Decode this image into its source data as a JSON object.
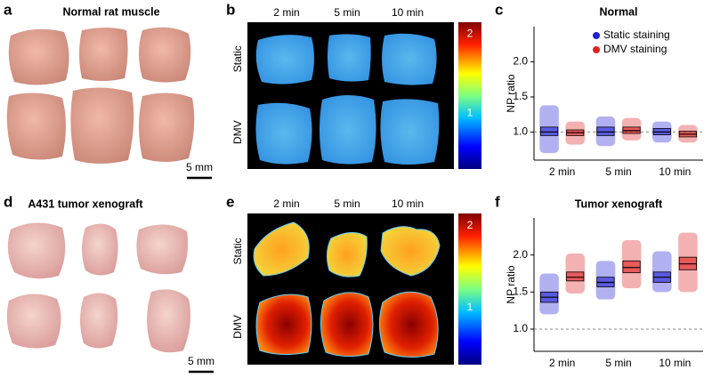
{
  "panels": {
    "a": {
      "letter": "a",
      "title": "Normal rat muscle",
      "scale": "5 mm"
    },
    "b": {
      "letter": "b",
      "columns": [
        "2 min",
        "5 min",
        "10 min"
      ],
      "rows": [
        "Static",
        "DMV"
      ],
      "colorbar_ticks": [
        2,
        1
      ],
      "colorbar_lim": [
        0.3,
        2.15
      ]
    },
    "d": {
      "letter": "d",
      "title": "A431 tumor xenograft",
      "scale": "5 mm"
    },
    "e": {
      "letter": "e",
      "columns": [
        "2 min",
        "5 min",
        "10 min"
      ],
      "rows": [
        "Static",
        "DMV"
      ],
      "colorbar_ticks": [
        2,
        1
      ],
      "colorbar_lim": [
        0.3,
        2.15
      ]
    }
  },
  "chart_data": [
    {
      "type": "box",
      "letter": "c",
      "title": "Normal",
      "ylabel": "NP ratio",
      "categories": [
        "2 min",
        "5 min",
        "10 min"
      ],
      "ylim": [
        0.6,
        2.5
      ],
      "yticks": [
        {
          "value": 1,
          "label": "1.0"
        },
        {
          "value": 1.5,
          "label": "1.5"
        },
        {
          "value": 2,
          "label": "2.0"
        }
      ],
      "reference_line": 1,
      "legend": "upper right",
      "series": [
        {
          "name": "Static staining",
          "color": "#1f1fd6",
          "median": [
            1.0,
            1.0,
            1.0
          ],
          "q1": [
            0.95,
            0.95,
            0.96
          ],
          "q3": [
            1.07,
            1.07,
            1.05
          ],
          "min": [
            0.7,
            0.8,
            0.85
          ],
          "max": [
            1.38,
            1.22,
            1.15
          ]
        },
        {
          "name": "DMV staining",
          "color": "#e02020",
          "median": [
            0.99,
            1.02,
            0.97
          ],
          "q1": [
            0.95,
            0.98,
            0.93
          ],
          "q3": [
            1.03,
            1.07,
            1.01
          ],
          "min": [
            0.82,
            0.88,
            0.85
          ],
          "max": [
            1.15,
            1.2,
            1.1
          ]
        }
      ]
    },
    {
      "type": "box",
      "letter": "f",
      "title": "Tumor xenograft",
      "ylabel": "NP ratio",
      "categories": [
        "2 min",
        "5 min",
        "10 min"
      ],
      "ylim": [
        0.7,
        2.5
      ],
      "yticks": [
        {
          "value": 1,
          "label": "1.0"
        },
        {
          "value": 1.5,
          "label": "1.5"
        },
        {
          "value": 2,
          "label": "2.0"
        }
      ],
      "reference_line": 1,
      "series": [
        {
          "color": "#1f1fd6",
          "median": [
            1.43,
            1.63,
            1.7
          ],
          "q1": [
            1.36,
            1.57,
            1.63
          ],
          "q3": [
            1.5,
            1.7,
            1.77
          ],
          "min": [
            1.2,
            1.4,
            1.5
          ],
          "max": [
            1.75,
            1.92,
            2.05
          ]
        },
        {
          "color": "#e02020",
          "median": [
            1.7,
            1.83,
            1.88
          ],
          "q1": [
            1.65,
            1.76,
            1.8
          ],
          "q3": [
            1.77,
            1.92,
            1.97
          ],
          "min": [
            1.48,
            1.55,
            1.5
          ],
          "max": [
            2.02,
            2.2,
            2.3
          ]
        }
      ]
    }
  ]
}
